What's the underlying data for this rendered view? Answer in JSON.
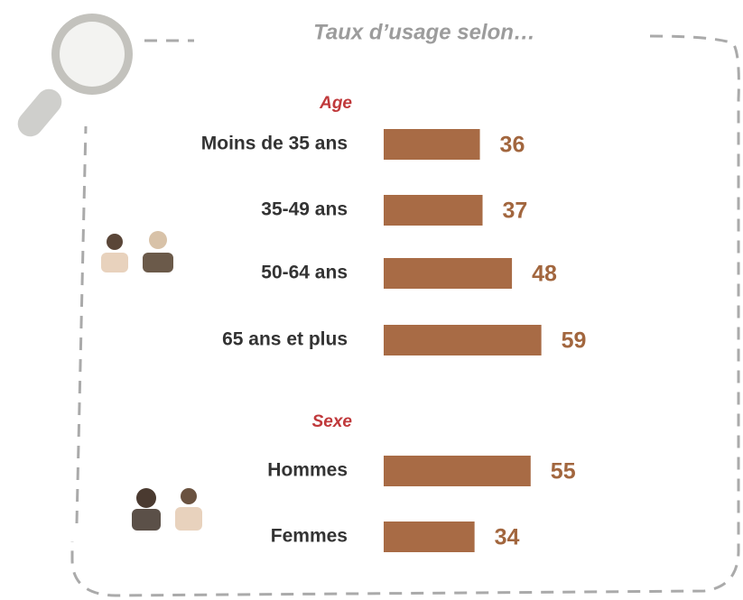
{
  "title": "Taux d’usage selon…",
  "chart_data": [
    {
      "type": "bar",
      "orientation": "horizontal",
      "title": "Age",
      "color": "#a86b45",
      "categories": [
        "Moins de 35 ans",
        "35-49 ans",
        "50-64 ans",
        "65 ans et plus"
      ],
      "values": [
        36,
        37,
        48,
        59
      ]
    },
    {
      "type": "bar",
      "orientation": "horizontal",
      "title": "Sexe",
      "color": "#a86b45",
      "categories": [
        "Hommes",
        "Femmes"
      ],
      "values": [
        55,
        34
      ]
    }
  ]
}
